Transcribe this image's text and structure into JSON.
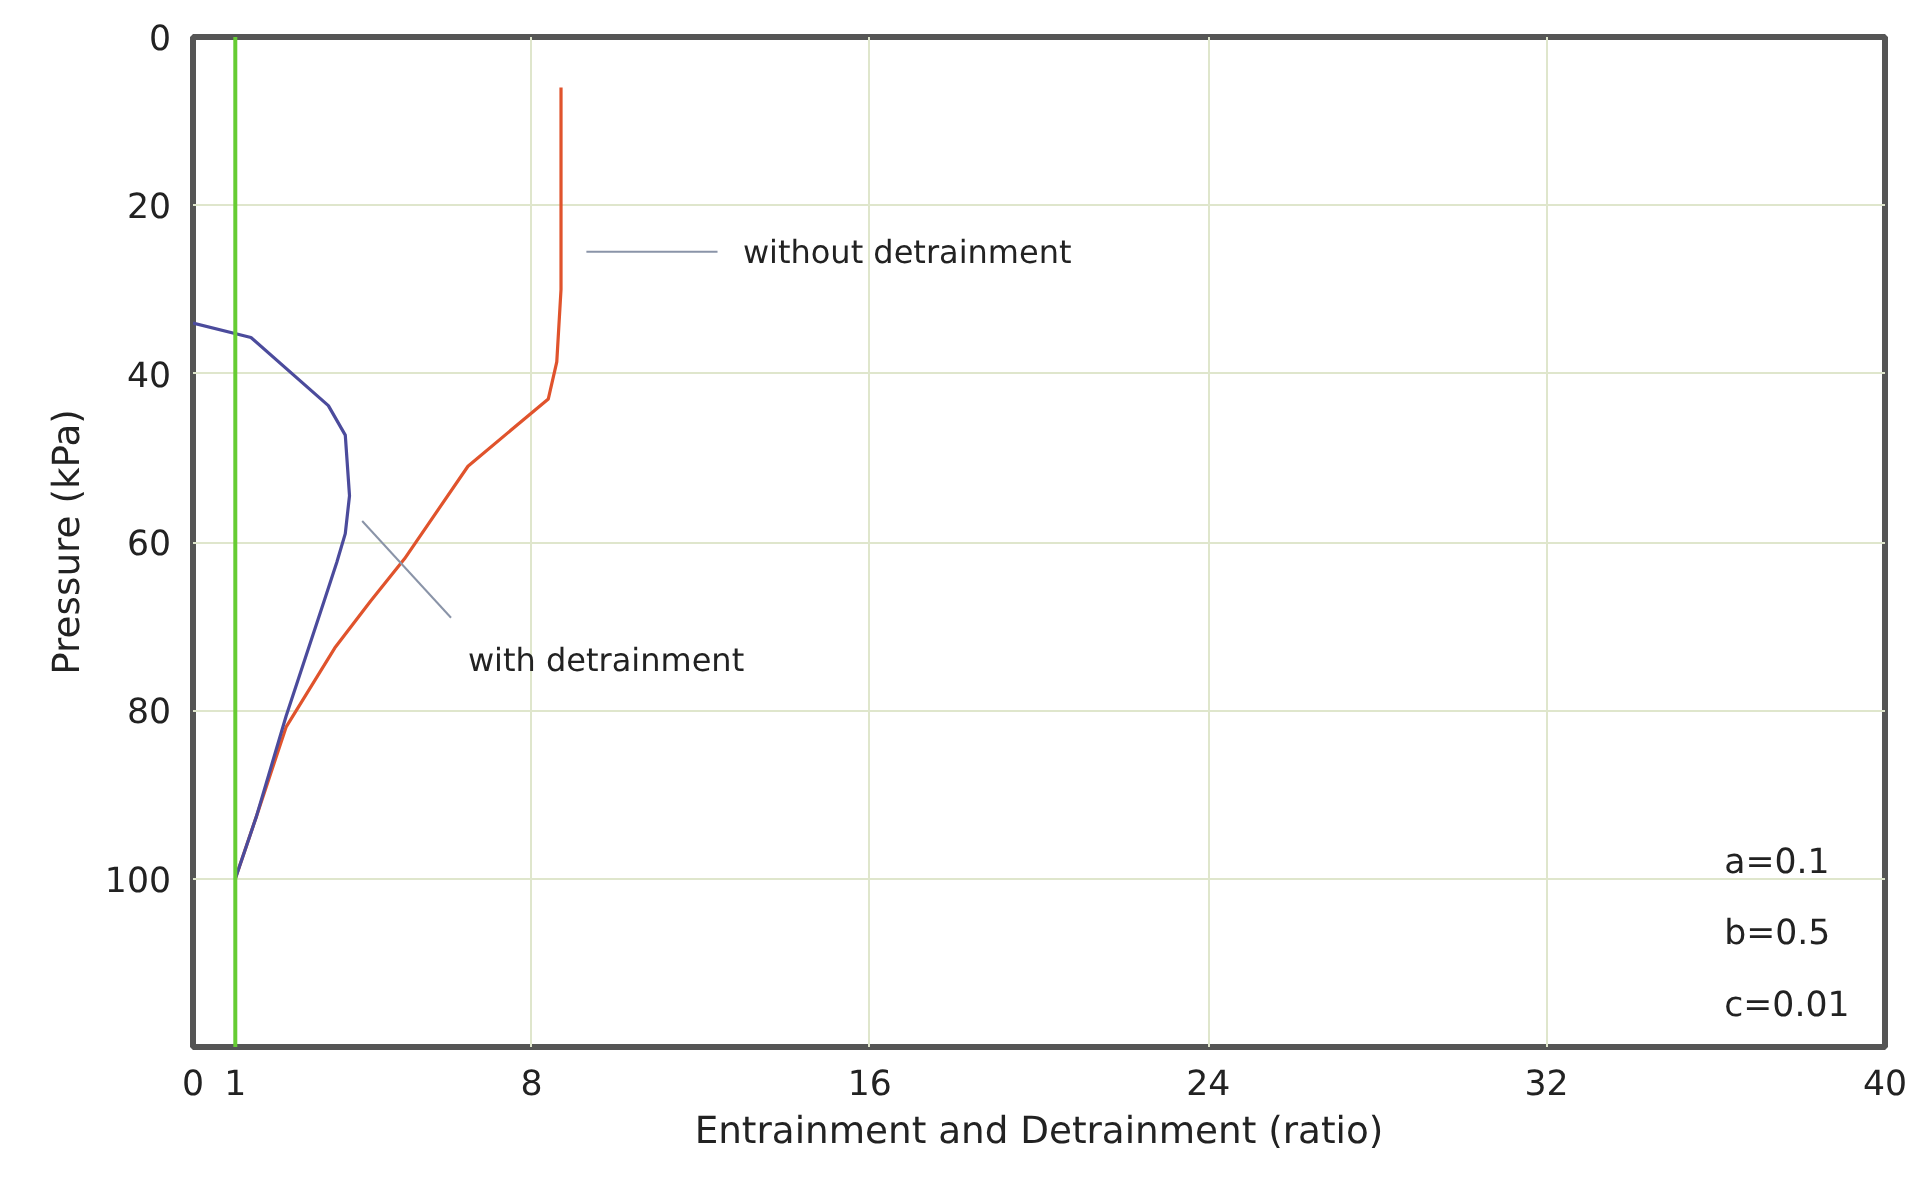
{
  "chart_data": {
    "type": "line",
    "xlabel": "Entrainment and Detrainment (ratio)",
    "ylabel": "Pressure (kPa)",
    "xlim": [
      0,
      40
    ],
    "ylim": [
      120,
      0
    ],
    "xticks": [
      0,
      1,
      8,
      16,
      24,
      32,
      40
    ],
    "yticks": [
      0,
      20,
      40,
      60,
      80,
      100
    ],
    "grid": true,
    "line_style": "solid",
    "series": [
      {
        "name": "without detrainment",
        "color": "#e0532c",
        "x": [
          1.0,
          1.5,
          2.2,
          3.35,
          4.2,
          5.0,
          6.5,
          8.4,
          8.6,
          8.7,
          8.7
        ],
        "values": [
          100,
          92.6,
          82,
          72.6,
          67,
          62,
          51,
          43,
          38.6,
          30,
          6
        ]
      },
      {
        "name": "with detrainment",
        "color": "#4b4b9c",
        "x": [
          1.0,
          1.5,
          2.2,
          3.1,
          3.4,
          3.6,
          3.7,
          3.6,
          3.2,
          1.37,
          0
        ],
        "values": [
          100,
          92.6,
          80.7,
          67,
          62.4,
          59,
          54.5,
          47.3,
          43.8,
          35.7,
          34
        ]
      }
    ],
    "ref_lines": [
      {
        "axis": "x",
        "value": 1,
        "color": "#66cc33"
      }
    ],
    "annotations": [
      "a=0.1",
      "b=0.5",
      "c=0.01"
    ]
  }
}
